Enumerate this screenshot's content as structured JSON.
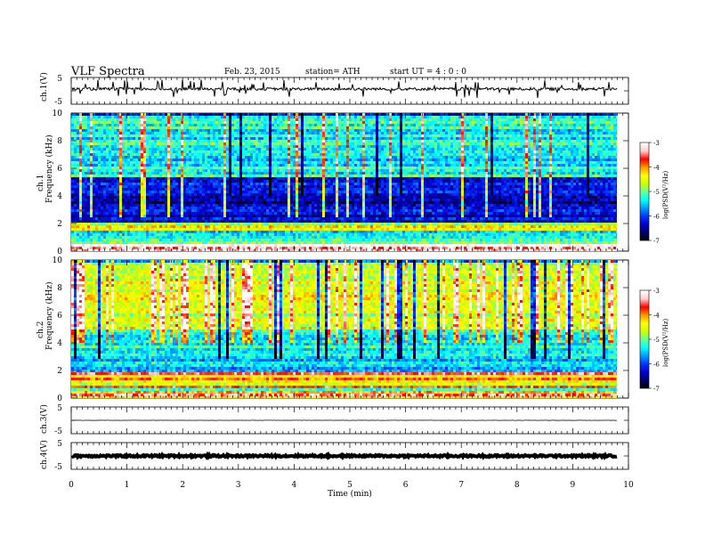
{
  "header": {
    "title": "VLF  Spectra",
    "date": "Feb. 23, 2015",
    "station": "station= ATH",
    "start": "start  UT  =   4  : 0  : 0"
  },
  "colors": {
    "colormap": [
      "#000000",
      "#000066",
      "#0000cc",
      "#0033ff",
      "#0099ff",
      "#00ffff",
      "#66ff99",
      "#ccff00",
      "#ffff00",
      "#ff9900",
      "#ff0000",
      "#ffcccc",
      "#ffffff"
    ],
    "trace": "#000000"
  },
  "chart_data": [
    {
      "type": "line",
      "name": "ch1-waveform",
      "ylabel": "ch.1(V)",
      "ylim": [
        -5,
        5
      ],
      "yticks": [
        "5",
        "-5"
      ],
      "x_range_min": [
        0,
        9.8
      ],
      "baseline_v": 0.8,
      "noise_amplitude_v": 0.6,
      "spikes_approx_count": 60
    },
    {
      "type": "heatmap",
      "name": "ch1-spectrogram",
      "ylabel": "Frequency  (kHz)",
      "channel_label": "ch.1",
      "ylim": [
        0,
        10
      ],
      "yticks": [
        "0",
        "2",
        "4",
        "6",
        "8",
        "10"
      ],
      "x_range_min": [
        0,
        9.8
      ],
      "colorbar": {
        "label": "log(PSD(V²/Hz)",
        "range": [
          -7,
          -3
        ],
        "ticks": [
          "-3",
          "-4",
          "-5",
          "-6",
          "-7"
        ]
      },
      "description_bands_khz": [
        {
          "from": 0,
          "to": 0.6,
          "level": -3.2
        },
        {
          "from": 0.6,
          "to": 2.2,
          "level": -4.8
        },
        {
          "from": 2.2,
          "to": 5.5,
          "level": -6.3
        },
        {
          "from": 5.5,
          "to": 10,
          "level": -5.3
        }
      ]
    },
    {
      "type": "heatmap",
      "name": "ch2-spectrogram",
      "ylabel": "Frequency  (kHz)",
      "channel_label": "ch.2",
      "ylim": [
        0,
        10
      ],
      "yticks": [
        "0",
        "2",
        "4",
        "6",
        "8",
        "10"
      ],
      "x_range_min": [
        0,
        9.8
      ],
      "colorbar": {
        "label": "log(PSD(V²/Hz)",
        "range": [
          -7,
          -3
        ],
        "ticks": [
          "-3",
          "-4",
          "-5",
          "-6",
          "-7"
        ]
      },
      "description_bands_khz": [
        {
          "from": 0,
          "to": 2,
          "level": -4.3
        },
        {
          "from": 2,
          "to": 5,
          "level": -5.4
        },
        {
          "from": 5,
          "to": 10,
          "level": -4.5
        }
      ]
    },
    {
      "type": "line",
      "name": "ch3-waveform",
      "ylabel": "ch.3(V)",
      "ylim": [
        -5,
        5
      ],
      "yticks": [
        "5",
        "-5"
      ],
      "x_range_min": [
        0,
        9.8
      ],
      "baseline_v": 0.0,
      "noise_amplitude_v": 0.05
    },
    {
      "type": "line",
      "name": "ch4-waveform",
      "ylabel": "ch.4(V)",
      "ylim": [
        -5,
        5
      ],
      "yticks": [
        "5",
        "-5"
      ],
      "x_range_min": [
        0,
        9.8
      ],
      "baseline_v": 0.0,
      "noise_amplitude_v": 0.4
    }
  ],
  "xaxis": {
    "label": "Time  (min)",
    "range": [
      0,
      10
    ],
    "ticks": [
      "0",
      "1",
      "2",
      "3",
      "4",
      "5",
      "6",
      "7",
      "8",
      "9",
      "10"
    ]
  }
}
